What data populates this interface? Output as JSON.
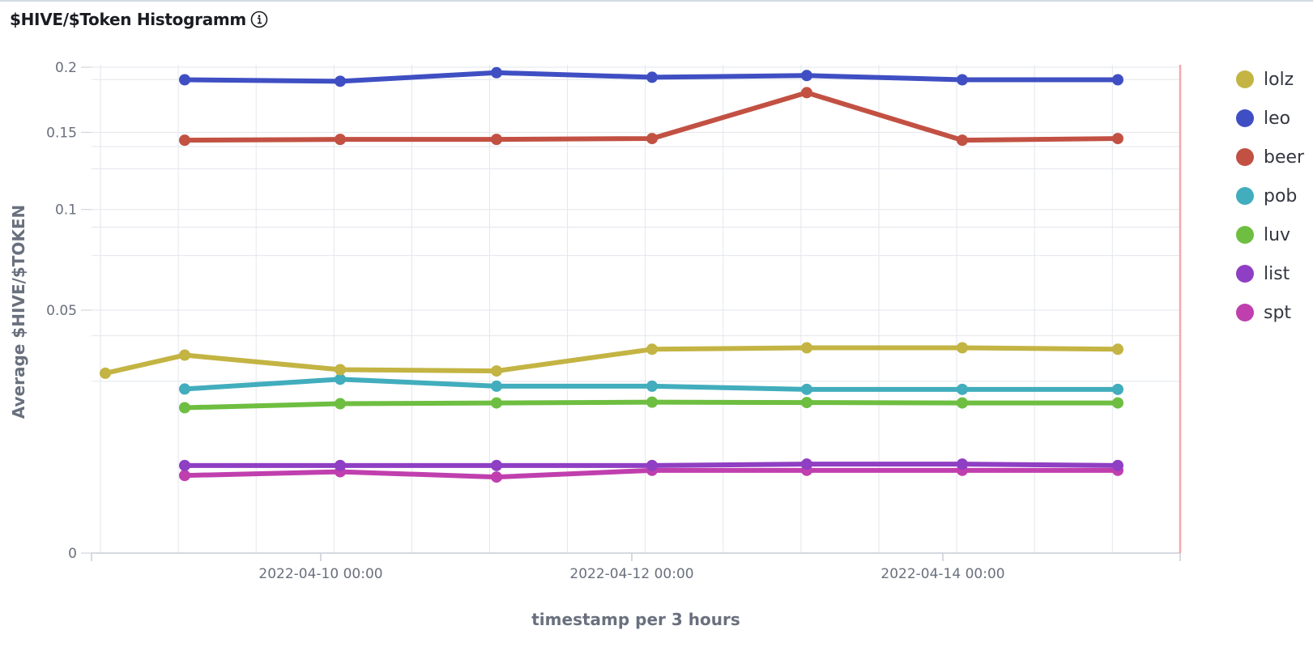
{
  "title": "$HIVE/$Token Histogramm",
  "chart_data": {
    "type": "line",
    "title": "$HIVE/$Token Histogramm",
    "xlabel": "timestamp per 3 hours",
    "ylabel": "Average $HIVE/$TOKEN",
    "x_tick_labels": [
      "2022-04-10 00:00",
      "2022-04-12 00:00",
      "2022-04-14 00:00"
    ],
    "y_tick_labels": [
      "0",
      "0.05",
      "0.1",
      "0.15",
      "0.2"
    ],
    "y_scale": "sqrt",
    "ylim": [
      0,
      0.2
    ],
    "grid": true,
    "legend_position": "right",
    "x": [
      "2022-04-08 12:00",
      "2022-04-09 00:00",
      "2022-04-10 00:00",
      "2022-04-11 00:00",
      "2022-04-12 00:00",
      "2022-04-13 00:00",
      "2022-04-14 00:00",
      "2022-04-15 00:00"
    ],
    "series": [
      {
        "name": "lolz",
        "color": "#c3b443",
        "values": [
          0.0274,
          0.0332,
          0.0285,
          0.0281,
          0.0352,
          0.0357,
          0.0357,
          0.0352
        ]
      },
      {
        "name": "leo",
        "color": "#3f4fc3",
        "values": [
          null,
          0.1898,
          0.1886,
          0.1955,
          0.1918,
          0.1932,
          0.1898,
          0.1898
        ]
      },
      {
        "name": "beer",
        "color": "#c25143",
        "values": [
          null,
          0.1444,
          0.145,
          0.145,
          0.1456,
          0.1796,
          0.1444,
          0.1456
        ]
      },
      {
        "name": "pob",
        "color": "#41adbd",
        "values": [
          null,
          0.0228,
          0.0256,
          0.0236,
          0.0236,
          0.0227,
          0.0227,
          0.0227
        ]
      },
      {
        "name": "luv",
        "color": "#6ebe41",
        "values": [
          null,
          0.0179,
          0.0189,
          0.0191,
          0.0193,
          0.0192,
          0.0191,
          0.0191
        ]
      },
      {
        "name": "list",
        "color": "#8f3fc3",
        "values": [
          null,
          0.0065,
          0.0065,
          0.0065,
          0.0065,
          0.0067,
          0.0067,
          0.0065
        ]
      },
      {
        "name": "spt",
        "color": "#c03fae",
        "values": [
          null,
          0.0051,
          0.0056,
          0.0049,
          0.0058,
          0.0058,
          0.0058,
          0.0058
        ]
      }
    ]
  }
}
